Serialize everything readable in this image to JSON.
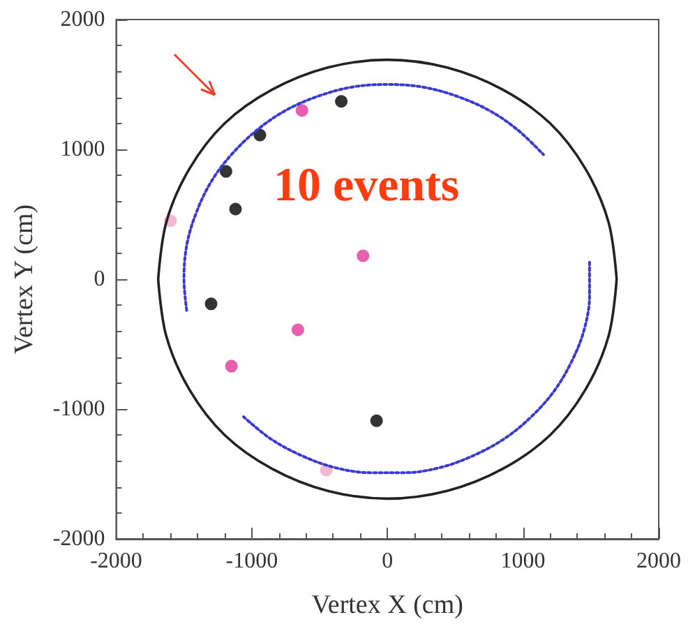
{
  "chart_data": {
    "type": "scatter",
    "xlabel": "Vertex X (cm)",
    "ylabel": "Vertex Y (cm)",
    "annotations": [
      "10 events"
    ],
    "xlim": [
      -2000,
      2000
    ],
    "xticks": [
      -2000,
      -1000,
      0,
      1000,
      2000
    ],
    "ylim": [
      -2000,
      2000
    ],
    "yticks": [
      -2000,
      -1000,
      0,
      1000,
      2000
    ],
    "series": [
      {
        "type": "line",
        "color": "#222222",
        "marker": "none",
        "line_style": "solid",
        "x": [
          1690,
          1630,
          1460,
          1200,
          850,
          440,
          0,
          -440,
          -850,
          -1200,
          -1460,
          -1630,
          -1690,
          null,
          -1690,
          -1630,
          -1460,
          -1200,
          -850,
          -440,
          0,
          440,
          850,
          1200,
          1460,
          1630,
          1690
        ],
        "values": [
          0,
          440,
          850,
          1200,
          1460,
          1630,
          1690,
          1630,
          1460,
          1200,
          850,
          440,
          0,
          null,
          0,
          -440,
          -850,
          -1200,
          -1460,
          -1630,
          -1690,
          -1630,
          -1460,
          -1200,
          -850,
          -440,
          0
        ]
      },
      {
        "type": "line",
        "color": "#3a3ad0",
        "marker": "none",
        "line_style": "dotted",
        "x": [
          -1480,
          -1500,
          -1480,
          -1410,
          -1300,
          -1150,
          -960,
          -750,
          -510,
          -260,
          0,
          260,
          510,
          750,
          960,
          1150,
          null,
          1490,
          1490,
          1450,
          1360,
          1230,
          1060,
          860,
          630,
          390,
          130,
          -130,
          -390,
          -630,
          -860,
          -1060
        ],
        "values": [
          -240,
          0,
          260,
          510,
          750,
          960,
          1150,
          1300,
          1410,
          1480,
          1500,
          1480,
          1410,
          1300,
          1150,
          960,
          null,
          130,
          -130,
          -390,
          -630,
          -860,
          -1060,
          -1230,
          -1360,
          -1450,
          -1490,
          -1490,
          -1450,
          -1360,
          -1230,
          -1060
        ]
      },
      {
        "color": "#000000",
        "marker": "circle",
        "x": [
          -340,
          -940,
          -1190,
          -1120,
          -1300,
          -80
        ],
        "values": [
          1370,
          1110,
          830,
          540,
          -190,
          -1090
        ]
      },
      {
        "color": "#e0369a",
        "marker": "circle",
        "x": [
          -630,
          -180,
          -660,
          -1150
        ],
        "values": [
          1300,
          180,
          -390,
          -670
        ]
      },
      {
        "color": "#f2a6c8",
        "marker": "circle",
        "x": [
          -1600,
          -450
        ],
        "values": [
          450,
          -1470
        ]
      }
    ]
  }
}
